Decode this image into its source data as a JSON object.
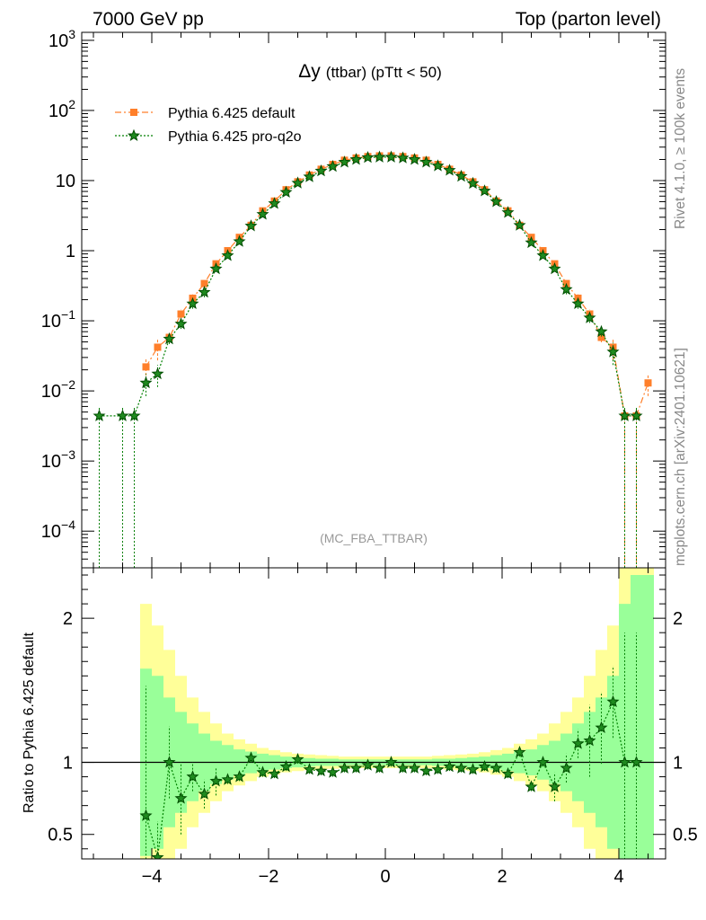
{
  "header": {
    "left": "7000 GeV pp",
    "right": "Top (parton level)"
  },
  "side_labels": {
    "rivet": "Rivet 4.1.0, ≥ 100k events",
    "mcplots": "mcplots.cern.ch [arXiv:2401.10621]"
  },
  "plot": {
    "title_main": "Δy",
    "title_sub": "(ttbar) (pTtt < 50)",
    "watermark": "(MC_FBA_TTBAR)",
    "ratio_ylabel": "Ratio to Pythia 6.425 default"
  },
  "chart_data": [
    {
      "type": "line",
      "panel": "main",
      "yscale": "log",
      "xlim": [
        -5.2,
        4.8
      ],
      "ylim": [
        3e-05,
        1300
      ],
      "xticks": [
        -4,
        -2,
        0,
        2,
        4
      ],
      "yticks": [
        {
          "value": 1000,
          "base": "10",
          "exp": "3"
        },
        {
          "value": 100,
          "base": "10",
          "exp": "2"
        },
        {
          "value": 10,
          "base": "10",
          "exp": ""
        },
        {
          "value": 1,
          "base": "1",
          "exp": ""
        },
        {
          "value": 0.1,
          "base": "10",
          "exp": "−1"
        },
        {
          "value": 0.01,
          "base": "10",
          "exp": "−2"
        },
        {
          "value": 0.001,
          "base": "10",
          "exp": "−3"
        },
        {
          "value": 0.0001,
          "base": "10",
          "exp": "−4"
        }
      ],
      "series": [
        {
          "name": "Pythia 6.425 default",
          "color": "#ff7f2a",
          "marker": "square",
          "x": [
            -4.1,
            -3.9,
            -3.7,
            -3.5,
            -3.3,
            -3.1,
            -2.9,
            -2.7,
            -2.5,
            -2.3,
            -2.1,
            -1.9,
            -1.7,
            -1.5,
            -1.3,
            -1.1,
            -0.9,
            -0.7,
            -0.5,
            -0.3,
            -0.1,
            0.1,
            0.3,
            0.5,
            0.7,
            0.9,
            1.1,
            1.3,
            1.5,
            1.7,
            1.9,
            2.1,
            2.3,
            2.5,
            2.7,
            2.9,
            3.1,
            3.3,
            3.5,
            3.7,
            3.9,
            4.1,
            4.3,
            4.5
          ],
          "y": [
            0.022,
            0.042,
            0.058,
            0.125,
            0.21,
            0.34,
            0.65,
            1.0,
            1.55,
            2.3,
            3.7,
            5.1,
            7.4,
            9.6,
            12.0,
            14.5,
            17.0,
            19.5,
            21.0,
            22.0,
            22.5,
            22.5,
            22.0,
            21.0,
            19.5,
            17.0,
            14.5,
            12.0,
            9.6,
            7.4,
            5.1,
            3.7,
            2.3,
            1.55,
            1.0,
            0.65,
            0.34,
            0.21,
            0.125,
            0.058,
            0.042,
            0.0044,
            0.0044,
            0.013
          ]
        },
        {
          "name": "Pythia 6.425 pro-q2o",
          "color": "#008000",
          "marker": "star",
          "x": [
            -4.9,
            -4.5,
            -4.3,
            -4.1,
            -3.9,
            -3.7,
            -3.5,
            -3.3,
            -3.1,
            -2.9,
            -2.7,
            -2.5,
            -2.3,
            -2.1,
            -1.9,
            -1.7,
            -1.5,
            -1.3,
            -1.1,
            -0.9,
            -0.7,
            -0.5,
            -0.3,
            -0.1,
            0.1,
            0.3,
            0.5,
            0.7,
            0.9,
            1.1,
            1.3,
            1.5,
            1.7,
            1.9,
            2.1,
            2.3,
            2.5,
            2.7,
            2.9,
            3.1,
            3.3,
            3.5,
            3.7,
            3.9,
            4.1,
            4.3
          ],
          "y": [
            0.0044,
            0.0044,
            0.0044,
            0.013,
            0.0175,
            0.055,
            0.09,
            0.175,
            0.255,
            0.55,
            0.85,
            1.35,
            2.25,
            3.3,
            4.7,
            6.8,
            9.2,
            11.3,
            13.7,
            15.9,
            18.3,
            20.0,
            21.3,
            21.6,
            21.6,
            21.0,
            20.0,
            18.3,
            16.2,
            14.0,
            11.5,
            9.1,
            7.1,
            5.0,
            3.5,
            2.3,
            1.3,
            0.85,
            0.55,
            0.28,
            0.175,
            0.11,
            0.07,
            0.036,
            0.0044,
            0.0044
          ]
        }
      ]
    },
    {
      "type": "line",
      "panel": "ratio",
      "ylabel": "Ratio to Pythia 6.425 default",
      "xlim": [
        -5.2,
        4.8
      ],
      "ylim": [
        0.33,
        2.35
      ],
      "reference": 1,
      "xticks": [
        -4,
        -2,
        0,
        2,
        4
      ],
      "yticks": [
        0.5,
        1,
        2
      ],
      "band_x": [
        -4.2,
        -4.0,
        -3.8,
        -3.6,
        -3.4,
        -3.2,
        -3.0,
        -2.8,
        -2.6,
        -2.4,
        -2.2,
        -2.0,
        -1.8,
        -1.6,
        -1.4,
        -1.2,
        -1.0,
        -0.8,
        -0.6,
        -0.4,
        -0.2,
        0.0,
        0.2,
        0.4,
        0.6,
        0.8,
        1.0,
        1.2,
        1.4,
        1.6,
        1.8,
        2.0,
        2.2,
        2.4,
        2.6,
        2.8,
        3.0,
        3.2,
        3.4,
        3.6,
        3.8,
        4.0,
        4.2,
        4.4,
        4.6
      ],
      "band_1sigma": [
        0.65,
        0.6,
        0.45,
        0.35,
        0.27,
        0.2,
        0.15,
        0.12,
        0.09,
        0.075,
        0.06,
        0.05,
        0.04,
        0.035,
        0.03,
        0.025,
        0.025,
        0.02,
        0.02,
        0.02,
        0.02,
        0.02,
        0.02,
        0.02,
        0.02,
        0.025,
        0.025,
        0.03,
        0.035,
        0.04,
        0.05,
        0.06,
        0.075,
        0.09,
        0.12,
        0.15,
        0.2,
        0.27,
        0.35,
        0.45,
        0.6,
        1.1,
        1.3,
        1.3
      ],
      "band_2sigma": [
        1.1,
        0.95,
        0.78,
        0.6,
        0.45,
        0.35,
        0.27,
        0.2,
        0.16,
        0.13,
        0.1,
        0.085,
        0.07,
        0.06,
        0.055,
        0.05,
        0.045,
        0.04,
        0.04,
        0.04,
        0.04,
        0.04,
        0.04,
        0.04,
        0.04,
        0.045,
        0.05,
        0.055,
        0.06,
        0.07,
        0.085,
        0.1,
        0.13,
        0.16,
        0.2,
        0.27,
        0.35,
        0.45,
        0.6,
        0.78,
        0.95,
        1.6,
        1.8,
        1.8
      ],
      "series": [
        {
          "name": "Pythia 6.425 pro-q2o",
          "color": "#008000",
          "marker": "star",
          "x": [
            -4.1,
            -3.9,
            -3.7,
            -3.5,
            -3.3,
            -3.1,
            -2.9,
            -2.7,
            -2.5,
            -2.3,
            -2.1,
            -1.9,
            -1.7,
            -1.5,
            -1.3,
            -1.1,
            -0.9,
            -0.7,
            -0.5,
            -0.3,
            -0.1,
            0.1,
            0.3,
            0.5,
            0.7,
            0.9,
            1.1,
            1.3,
            1.5,
            1.7,
            1.9,
            2.1,
            2.3,
            2.5,
            2.7,
            2.9,
            3.1,
            3.3,
            3.5,
            3.7,
            3.9,
            4.1,
            4.3
          ],
          "y": [
            0.63,
            0.34,
            1.0,
            0.75,
            0.9,
            0.78,
            0.87,
            0.88,
            0.9,
            1.03,
            0.93,
            0.92,
            0.97,
            1.02,
            0.95,
            0.94,
            0.93,
            0.96,
            0.96,
            0.98,
            0.96,
            1.0,
            0.96,
            0.96,
            0.94,
            0.95,
            0.97,
            0.96,
            0.95,
            0.97,
            0.96,
            0.92,
            1.07,
            0.83,
            1.0,
            0.83,
            0.96,
            1.13,
            1.15,
            1.24,
            1.42,
            1.0,
            1.0
          ]
        }
      ]
    }
  ]
}
